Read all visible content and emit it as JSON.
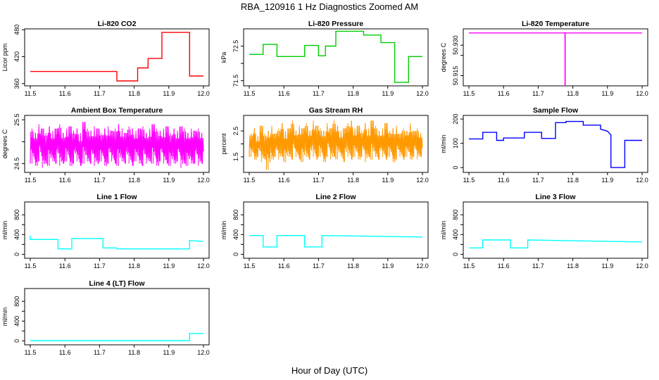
{
  "figure": {
    "title": "RBA_120916  1 Hz Diagnostics Zoomed AM",
    "xlabel": "Hour of Day (UTC)"
  },
  "chart_data": [
    {
      "type": "line",
      "title": "Li-820 CO2",
      "ylabel": "Licor ppm",
      "color": "#ff0000",
      "xlim": [
        11.5,
        12.0
      ],
      "xticks": [
        11.5,
        11.6,
        11.7,
        11.8,
        11.9,
        12.0
      ],
      "ylim": [
        355,
        482
      ],
      "yticks": [
        360,
        420,
        480
      ],
      "series": [
        {
          "name": "CO2",
          "x": [
            11.5,
            11.75,
            11.75,
            11.81,
            11.81,
            11.84,
            11.84,
            11.88,
            11.88,
            11.96,
            11.96,
            12.0
          ],
          "y": [
            387,
            387,
            366,
            366,
            395,
            395,
            416,
            416,
            474,
            474,
            377,
            377
          ]
        }
      ]
    },
    {
      "type": "line",
      "title": "Li-820 Pressure",
      "ylabel": "kPa",
      "color": "#00cc00",
      "xlim": [
        11.5,
        12.0
      ],
      "xticks": [
        11.5,
        11.6,
        11.7,
        11.8,
        11.9,
        12.0
      ],
      "ylim": [
        71.35,
        73.0
      ],
      "yticks": [
        71.5,
        72.0,
        72.5
      ],
      "ytick_labels": [
        "71.5",
        "",
        "72.5"
      ],
      "series": [
        {
          "name": "Pressure",
          "x": [
            11.5,
            11.54,
            11.54,
            11.58,
            11.58,
            11.66,
            11.66,
            11.7,
            11.7,
            11.72,
            11.72,
            11.75,
            11.75,
            11.83,
            11.83,
            11.88,
            11.88,
            11.92,
            11.92,
            11.96,
            11.96,
            12.0
          ],
          "y": [
            72.26,
            72.26,
            72.55,
            72.55,
            72.2,
            72.2,
            72.52,
            72.52,
            72.22,
            72.22,
            72.5,
            72.5,
            72.93,
            72.93,
            72.82,
            72.82,
            72.6,
            72.6,
            71.45,
            71.45,
            72.2,
            72.2
          ]
        }
      ]
    },
    {
      "type": "line",
      "title": "Li-820 Temperature",
      "ylabel": "degrees C",
      "color": "#ff00ff",
      "xlim": [
        11.5,
        12.0
      ],
      "xticks": [
        11.5,
        11.6,
        11.7,
        11.8,
        11.9,
        12.0
      ],
      "ylim": [
        50.91,
        50.938
      ],
      "yticks": [
        50.915,
        50.925,
        50.93
      ],
      "ytick_labels": [
        "50.915",
        "",
        "50.930"
      ],
      "series": [
        {
          "name": "Temperature",
          "x": [
            11.5,
            11.7775,
            11.7775,
            11.778,
            11.778,
            12.0
          ],
          "y": [
            50.936,
            50.936,
            50.91,
            50.91,
            50.936,
            50.936
          ]
        }
      ]
    },
    {
      "type": "line",
      "title": "Ambient Box Temperature",
      "ylabel": "degrees C",
      "color": "#ff00ff",
      "xlim": [
        11.5,
        12.0
      ],
      "xticks": [
        11.5,
        11.6,
        11.7,
        11.8,
        11.9,
        12.0
      ],
      "ylim": [
        24.3,
        25.6
      ],
      "yticks": [
        24.5,
        25.0,
        25.5
      ],
      "ytick_labels": [
        "24.5",
        "",
        "25.5"
      ],
      "series": [
        {
          "name": "Ambient Box Temperature",
          "x": [
            11.5,
            11.51,
            11.52,
            11.53,
            11.54,
            11.55,
            11.56,
            11.57,
            11.58,
            11.59,
            11.6,
            11.61,
            11.62,
            11.63,
            11.64,
            11.65,
            11.66,
            11.67,
            11.68,
            11.69,
            11.7,
            11.71,
            11.72,
            11.73,
            11.74,
            11.75,
            11.76,
            11.77,
            11.78,
            11.79,
            11.8,
            11.81,
            11.82,
            11.83,
            11.84,
            11.85,
            11.86,
            11.87,
            11.88,
            11.89,
            11.9,
            11.91,
            11.92,
            11.93,
            11.94,
            11.95,
            11.96,
            11.97,
            11.98,
            11.99
          ],
          "y_min": [
            24.5,
            24.45,
            24.55,
            24.4,
            24.5,
            24.45,
            24.55,
            24.5,
            24.45,
            24.5,
            24.55,
            24.45,
            24.5,
            24.55,
            24.45,
            24.5,
            24.55,
            24.5,
            24.45,
            24.5,
            24.55,
            24.45,
            24.5,
            24.55,
            24.5,
            24.45,
            24.55,
            24.5,
            24.5,
            24.45,
            24.55,
            24.5,
            24.45,
            24.5,
            24.55,
            24.5,
            24.45,
            24.55,
            24.5,
            24.5,
            24.45,
            24.5,
            24.55,
            24.4,
            24.5,
            24.45,
            24.5,
            24.5,
            24.45,
            24.5
          ],
          "y_max": [
            25.3,
            25.2,
            25.4,
            25.3,
            25.2,
            25.35,
            25.25,
            25.3,
            25.4,
            25.2,
            25.3,
            25.35,
            25.25,
            25.3,
            25.2,
            25.45,
            25.3,
            25.25,
            25.35,
            25.3,
            25.2,
            25.3,
            25.35,
            25.25,
            25.3,
            25.4,
            25.3,
            25.2,
            25.35,
            25.3,
            25.25,
            25.3,
            25.35,
            25.2,
            25.3,
            25.4,
            25.3,
            25.25,
            25.3,
            25.35,
            25.2,
            25.3,
            25.25,
            25.35,
            25.3,
            25.2,
            25.3,
            25.25,
            25.3,
            25.2
          ]
        }
      ]
    },
    {
      "type": "line",
      "title": "Gas Stream RH",
      "ylabel": "percent",
      "color": "#ff9900",
      "xlim": [
        11.5,
        12.0
      ],
      "xticks": [
        11.5,
        11.6,
        11.7,
        11.8,
        11.9,
        12.0
      ],
      "ylim": [
        0.9,
        3.1
      ],
      "yticks": [
        1.5,
        2.0,
        2.5
      ],
      "ytick_labels": [
        "1.5",
        "",
        "2.5"
      ],
      "series": [
        {
          "name": "Gas Stream RH",
          "x": [
            11.5,
            11.51,
            11.52,
            11.53,
            11.54,
            11.55,
            11.56,
            11.57,
            11.58,
            11.59,
            11.6,
            11.61,
            11.62,
            11.63,
            11.64,
            11.65,
            11.66,
            11.67,
            11.68,
            11.69,
            11.7,
            11.71,
            11.72,
            11.73,
            11.74,
            11.75,
            11.76,
            11.77,
            11.78,
            11.79,
            11.8,
            11.81,
            11.82,
            11.83,
            11.84,
            11.85,
            11.86,
            11.87,
            11.88,
            11.89,
            11.9,
            11.91,
            11.92,
            11.93,
            11.94,
            11.95,
            11.96,
            11.97,
            11.98,
            11.99
          ],
          "y_min": [
            1.5,
            1.4,
            1.5,
            1.3,
            1.4,
            1.0,
            1.4,
            1.5,
            1.4,
            1.5,
            1.3,
            1.5,
            1.4,
            1.5,
            1.4,
            1.3,
            1.5,
            1.4,
            1.5,
            1.4,
            1.5,
            1.3,
            1.5,
            1.4,
            1.5,
            1.4,
            1.5,
            1.3,
            1.5,
            1.4,
            1.5,
            1.4,
            1.5,
            1.3,
            1.5,
            1.4,
            1.5,
            1.4,
            1.5,
            1.4,
            1.5,
            1.3,
            1.4,
            1.5,
            1.4,
            1.5,
            1.4,
            1.5,
            1.4,
            1.5
          ],
          "y_max": [
            2.4,
            2.6,
            2.3,
            2.7,
            2.4,
            2.5,
            2.7,
            2.4,
            2.6,
            2.8,
            2.5,
            2.6,
            2.9,
            2.5,
            2.7,
            2.6,
            2.8,
            2.5,
            2.9,
            2.7,
            2.6,
            2.5,
            2.8,
            2.6,
            2.9,
            2.7,
            2.5,
            2.6,
            2.8,
            2.9,
            2.6,
            2.7,
            2.5,
            2.8,
            2.6,
            2.9,
            2.7,
            2.5,
            2.6,
            2.8,
            2.5,
            2.6,
            2.7,
            2.4,
            2.6,
            2.5,
            2.8,
            2.5,
            2.6,
            2.4
          ]
        }
      ]
    },
    {
      "type": "line",
      "title": "Sample Flow",
      "ylabel": "ml/min",
      "color": "#0000ff",
      "xlim": [
        11.5,
        12.0
      ],
      "xticks": [
        11.5,
        11.6,
        11.7,
        11.8,
        11.9,
        12.0
      ],
      "ylim": [
        -20,
        215
      ],
      "yticks": [
        0,
        100,
        200
      ],
      "series": [
        {
          "name": "Sample Flow",
          "x": [
            11.5,
            11.54,
            11.54,
            11.58,
            11.58,
            11.6,
            11.6,
            11.66,
            11.66,
            11.71,
            11.71,
            11.75,
            11.75,
            11.78,
            11.78,
            11.83,
            11.83,
            11.88,
            11.88,
            11.9,
            11.91,
            11.91,
            11.95,
            11.95,
            12.0
          ],
          "y": [
            118,
            118,
            145,
            145,
            112,
            112,
            122,
            122,
            145,
            145,
            120,
            120,
            185,
            185,
            190,
            190,
            175,
            175,
            158,
            150,
            135,
            0,
            0,
            112,
            112
          ]
        }
      ]
    },
    {
      "type": "line",
      "title": "Line 1 Flow",
      "ylabel": "ml/min",
      "color": "#00ffff",
      "xlim": [
        11.5,
        12.0
      ],
      "xticks": [
        11.5,
        11.6,
        11.7,
        11.8,
        11.9,
        12.0
      ],
      "ylim": [
        -80,
        1060
      ],
      "yticks": [
        0,
        200,
        400,
        600,
        800
      ],
      "ytick_labels": [
        "0",
        "",
        "400",
        "",
        "800"
      ],
      "series": [
        {
          "name": "Line 1 Flow",
          "x": [
            11.5,
            11.5,
            11.58,
            11.58,
            11.62,
            11.62,
            11.71,
            11.71,
            11.75,
            11.75,
            11.96,
            11.96,
            12.0
          ],
          "y": [
            380,
            300,
            300,
            110,
            110,
            320,
            320,
            130,
            130,
            110,
            110,
            280,
            260
          ]
        }
      ]
    },
    {
      "type": "line",
      "title": "Line 2 Flow",
      "ylabel": "ml/min",
      "color": "#00ffff",
      "xlim": [
        11.5,
        12.0
      ],
      "xticks": [
        11.5,
        11.6,
        11.7,
        11.8,
        11.9,
        12.0
      ],
      "ylim": [
        -80,
        1060
      ],
      "yticks": [
        0,
        200,
        400,
        600,
        800
      ],
      "ytick_labels": [
        "0",
        "",
        "400",
        "",
        "800"
      ],
      "series": [
        {
          "name": "Line 2 Flow",
          "x": [
            11.5,
            11.54,
            11.54,
            11.58,
            11.58,
            11.66,
            11.66,
            11.71,
            11.71,
            12.0
          ],
          "y": [
            380,
            380,
            150,
            150,
            380,
            380,
            150,
            150,
            380,
            350
          ]
        }
      ]
    },
    {
      "type": "line",
      "title": "Line 3 Flow",
      "ylabel": "ml/min",
      "color": "#00ffff",
      "xlim": [
        11.5,
        12.0
      ],
      "xticks": [
        11.5,
        11.6,
        11.7,
        11.8,
        11.9,
        12.0
      ],
      "ylim": [
        -80,
        1060
      ],
      "yticks": [
        0,
        200,
        400,
        600,
        800
      ],
      "ytick_labels": [
        "0",
        "",
        "400",
        "",
        "800"
      ],
      "series": [
        {
          "name": "Line 3 Flow",
          "x": [
            11.5,
            11.54,
            11.54,
            11.62,
            11.62,
            11.67,
            11.67,
            12.0
          ],
          "y": [
            130,
            130,
            290,
            290,
            130,
            130,
            290,
            250
          ]
        }
      ]
    },
    {
      "type": "line",
      "title": "Line 4 (LT) Flow",
      "ylabel": "ml/min",
      "color": "#00ffff",
      "xlim": [
        11.5,
        12.0
      ],
      "xticks": [
        11.5,
        11.6,
        11.7,
        11.8,
        11.9,
        12.0
      ],
      "ylim": [
        -80,
        1060
      ],
      "yticks": [
        0,
        200,
        400,
        600,
        800
      ],
      "ytick_labels": [
        "0",
        "",
        "400",
        "",
        "800"
      ],
      "series": [
        {
          "name": "Line 4 Flow",
          "x": [
            11.5,
            11.96,
            11.96,
            12.0
          ],
          "y": [
            5,
            5,
            150,
            150
          ]
        }
      ]
    }
  ]
}
